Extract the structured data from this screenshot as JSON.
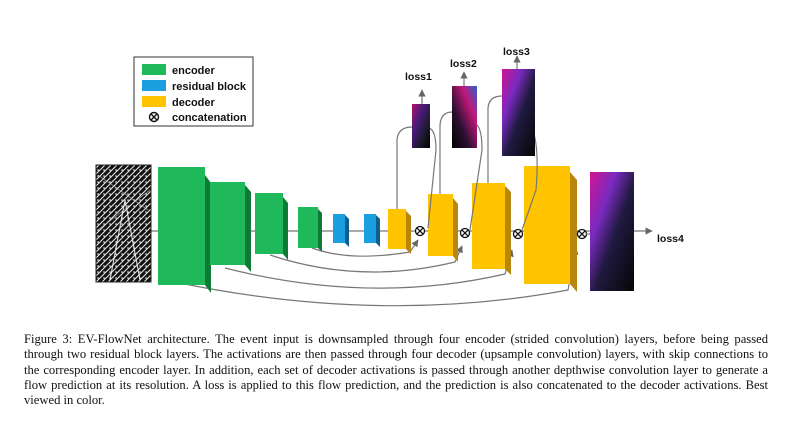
{
  "legend": {
    "items": [
      {
        "label": "encoder",
        "color": "#1fb85a",
        "kind": "box"
      },
      {
        "label": "residual block",
        "color": "#1a9fe0",
        "kind": "box"
      },
      {
        "label": "decoder",
        "color": "#ffc300",
        "kind": "box"
      },
      {
        "label": "concatenation",
        "color": "#111111",
        "kind": "otimes"
      }
    ]
  },
  "losses": [
    "loss1",
    "loss2",
    "loss3",
    "loss4"
  ],
  "colors": {
    "encoder": "#1fb85a",
    "encoder_side": "#0d7a36",
    "residual": "#1a9fe0",
    "residual_side": "#0d5f8c",
    "decoder": "#ffc300",
    "decoder_side": "#b8860b",
    "arrow": "#666666"
  },
  "caption": "Figure 3: EV-FlowNet architecture. The event input is downsampled through four encoder (strided convolution) layers, before being passed through two residual block layers. The activations are then passed through four decoder (upsample convolution) layers, with skip connections to the corresponding encoder layer. In addition, each set of decoder activations is passed through another depthwise convolution layer to generate a flow prediction at its resolution. A loss is applied to this flow prediction, and the prediction is also concatenated to the decoder activations. Best viewed in color."
}
